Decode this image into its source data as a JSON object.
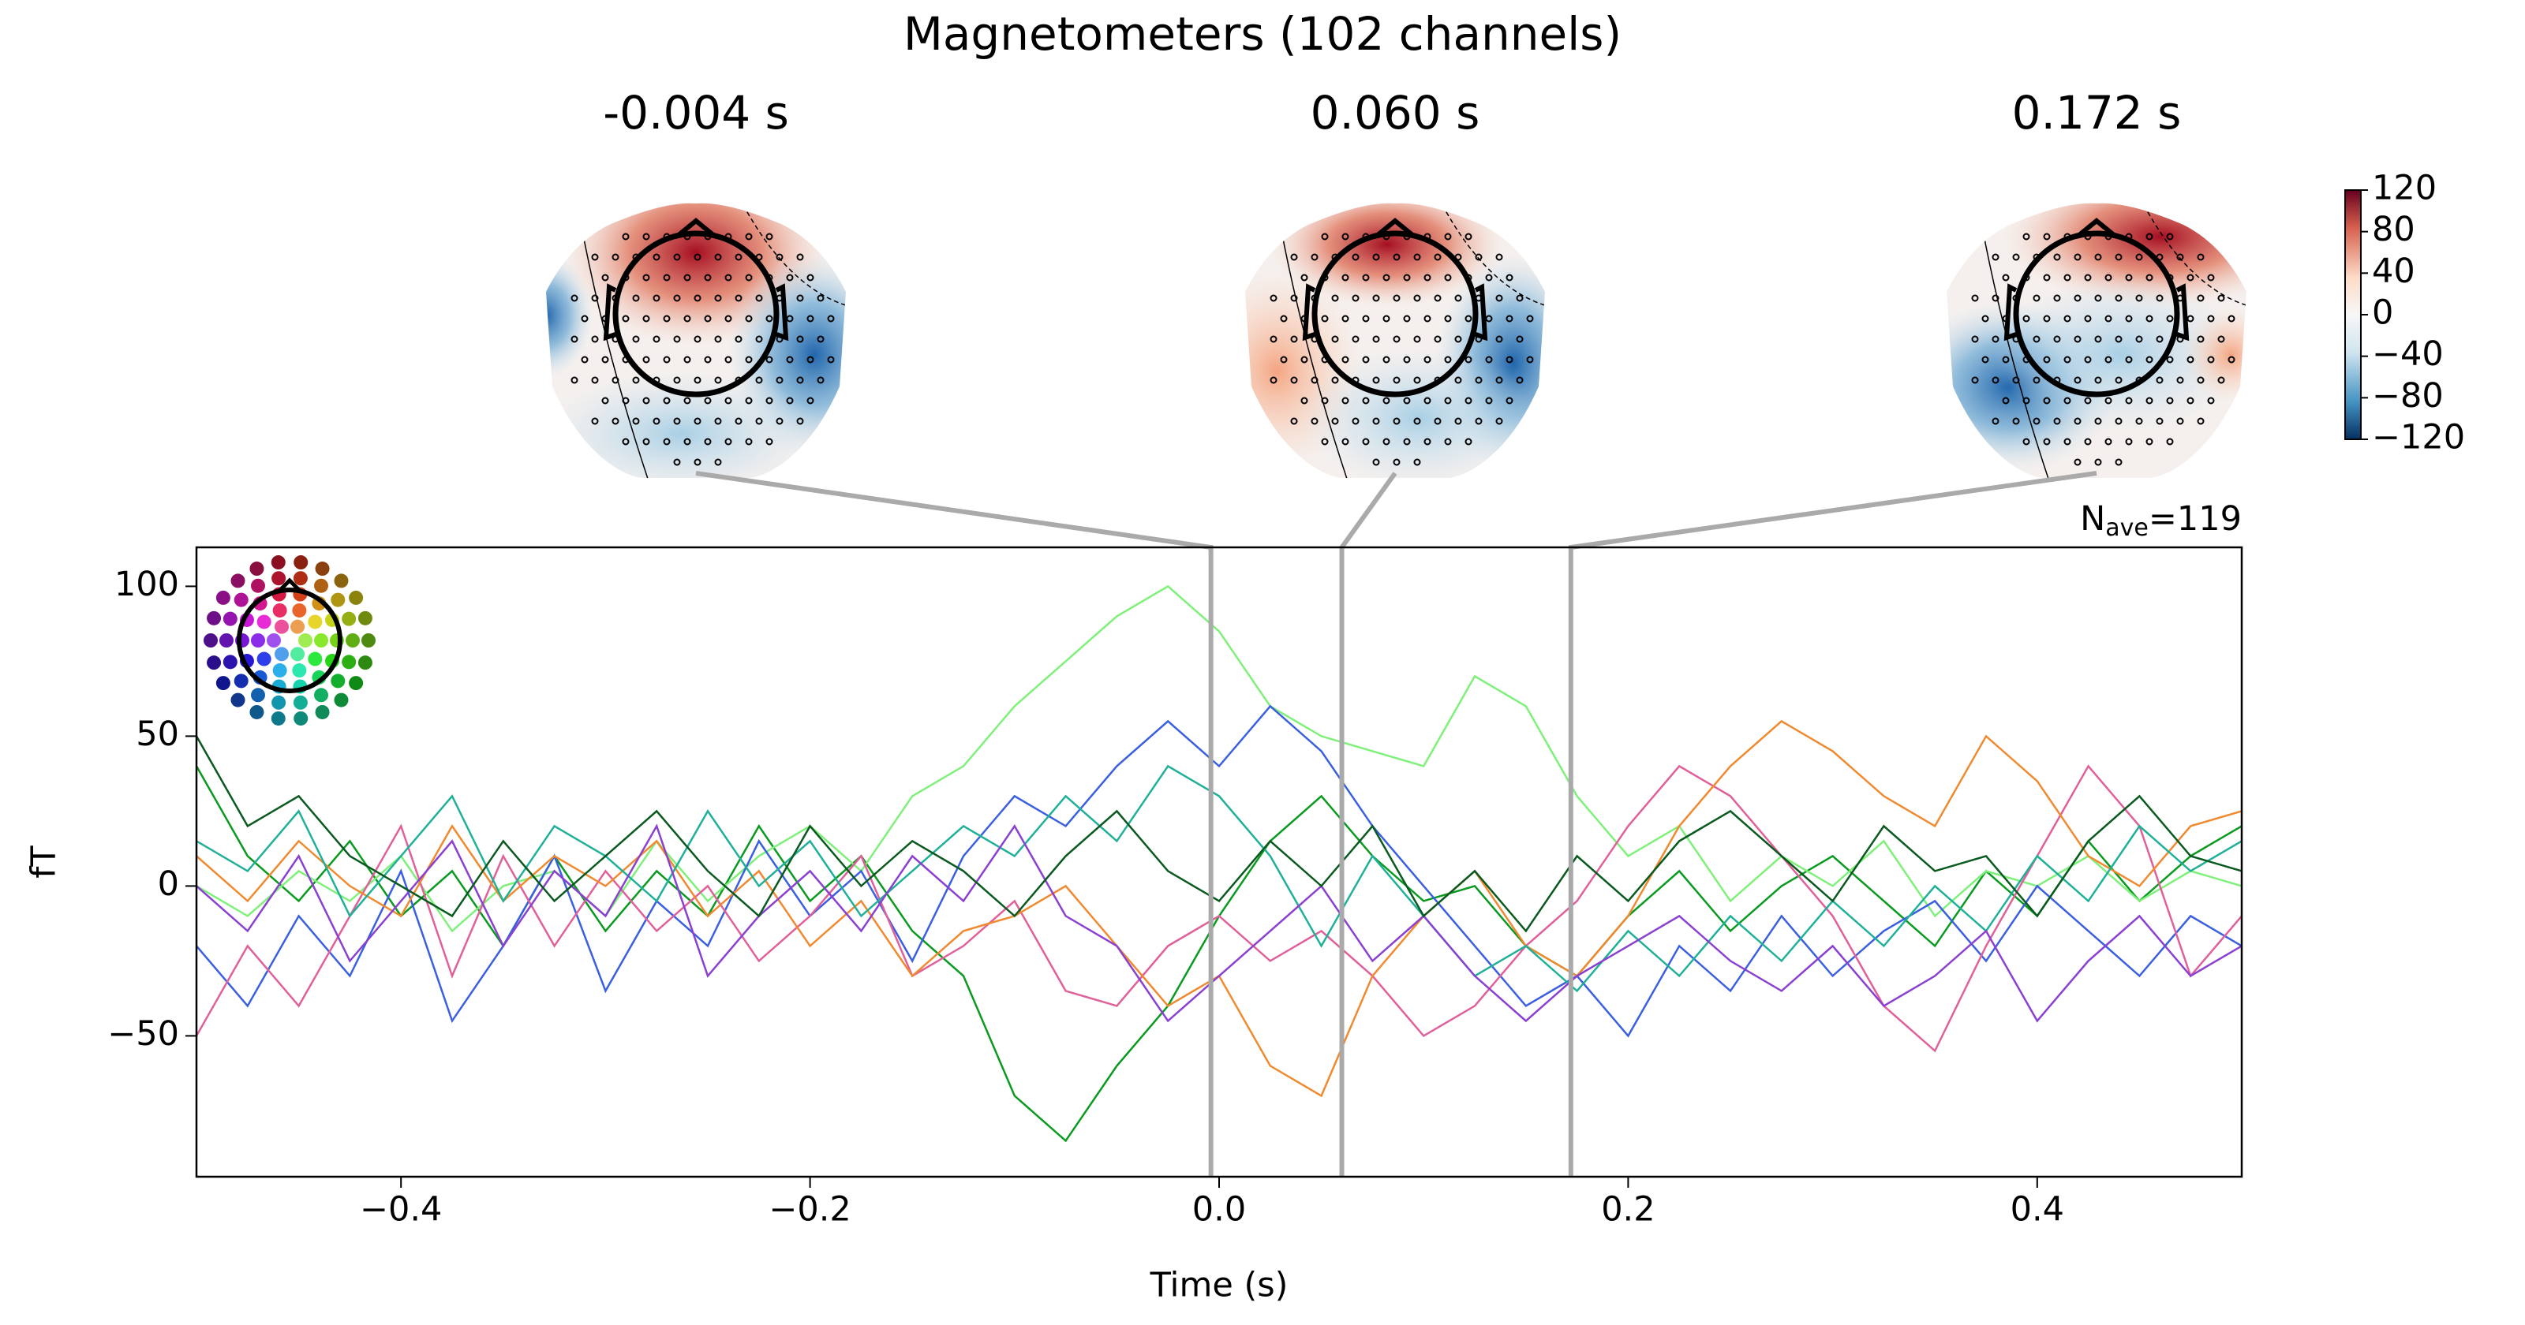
{
  "chart_data": {
    "type": "line",
    "title": "Magnetometers (102 channels)",
    "xlabel": "Time (s)",
    "ylabel": "fT",
    "nave": {
      "symbol": "N",
      "subscript": "ave",
      "text": "=119"
    },
    "topomap_times": [
      {
        "value": -0.004,
        "label": "-0.004 s"
      },
      {
        "value": 0.06,
        "label": "0.060 s"
      },
      {
        "value": 0.172,
        "label": "0.172 s"
      }
    ],
    "clim": [
      -120,
      120
    ],
    "cticks": [
      120,
      80,
      40,
      0,
      {
        "value": -40,
        "label": "−40"
      },
      {
        "value": -80,
        "label": "−80"
      },
      {
        "value": -120,
        "label": "−120"
      }
    ],
    "xlim": [
      -0.5,
      0.5
    ],
    "ylim": [
      -97,
      113
    ],
    "xticks": [
      {
        "value": -0.4,
        "label": "−0.4"
      },
      {
        "value": -0.2,
        "label": "−0.2"
      },
      {
        "value": 0,
        "label": "0.0"
      },
      {
        "value": 0.2,
        "label": "0.2"
      },
      {
        "value": 0.4,
        "label": "0.4"
      }
    ],
    "yticks": [
      100,
      50,
      0,
      {
        "value": -50,
        "label": "−50"
      }
    ],
    "x": [
      -0.5,
      -0.475,
      -0.45,
      -0.425,
      -0.4,
      -0.375,
      -0.35,
      -0.325,
      -0.3,
      -0.275,
      -0.25,
      -0.225,
      -0.2,
      -0.175,
      -0.15,
      -0.125,
      -0.1,
      -0.075,
      -0.05,
      -0.025,
      0,
      0.025,
      0.05,
      0.075,
      0.1,
      0.125,
      0.15,
      0.175,
      0.2,
      0.225,
      0.25,
      0.275,
      0.3,
      0.325,
      0.35,
      0.375,
      0.4,
      0.425,
      0.45,
      0.475,
      0.5
    ],
    "series": [
      {
        "color": "#0a9a20",
        "values": [
          40,
          10,
          -5,
          15,
          -10,
          5,
          -20,
          10,
          -15,
          5,
          -10,
          20,
          -5,
          10,
          -15,
          -30,
          -70,
          -85,
          -60,
          -40,
          -10,
          15,
          30,
          10,
          -5,
          0,
          -20,
          -30,
          -10,
          5,
          -15,
          0,
          10,
          -5,
          -20,
          5,
          -10,
          15,
          -5,
          10,
          20
        ]
      },
      {
        "color": "#7ff07a",
        "values": [
          0,
          -10,
          5,
          -5,
          10,
          -15,
          0,
          5,
          -10,
          15,
          -5,
          10,
          20,
          5,
          30,
          40,
          60,
          75,
          90,
          100,
          85,
          60,
          50,
          45,
          40,
          70,
          60,
          30,
          10,
          20,
          -5,
          10,
          0,
          15,
          -10,
          5,
          0,
          10,
          -5,
          5,
          0
        ]
      },
      {
        "color": "#3a5fe0",
        "values": [
          -20,
          -40,
          -10,
          -30,
          5,
          -45,
          -20,
          10,
          -35,
          -5,
          -20,
          15,
          -10,
          5,
          -25,
          10,
          30,
          20,
          40,
          55,
          40,
          60,
          45,
          20,
          0,
          -20,
          -40,
          -30,
          -50,
          -20,
          -35,
          -10,
          -30,
          -15,
          -5,
          -25,
          0,
          -15,
          -30,
          -10,
          -20
        ]
      },
      {
        "color": "#e0609a",
        "values": [
          -50,
          -20,
          -40,
          -10,
          20,
          -30,
          10,
          -20,
          5,
          -15,
          0,
          -25,
          -10,
          10,
          -30,
          -20,
          -5,
          -35,
          -40,
          -20,
          -10,
          -25,
          -15,
          -30,
          -50,
          -40,
          -20,
          -5,
          20,
          40,
          30,
          10,
          -10,
          -40,
          -55,
          -20,
          10,
          40,
          20,
          -30,
          -10
        ]
      },
      {
        "color": "#f08a30",
        "values": [
          10,
          -5,
          15,
          0,
          -10,
          20,
          -5,
          10,
          0,
          15,
          -10,
          5,
          -20,
          -5,
          -30,
          -15,
          -10,
          0,
          -20,
          -40,
          -30,
          -60,
          -70,
          -30,
          -10,
          5,
          -20,
          -30,
          -10,
          20,
          40,
          55,
          45,
          30,
          20,
          50,
          35,
          10,
          0,
          20,
          25
        ]
      },
      {
        "color": "#20b098",
        "values": [
          15,
          5,
          25,
          -10,
          10,
          30,
          -5,
          20,
          10,
          -5,
          25,
          0,
          15,
          -10,
          5,
          20,
          10,
          30,
          15,
          40,
          30,
          10,
          -20,
          10,
          -10,
          -30,
          -20,
          -35,
          -15,
          -30,
          -10,
          -25,
          -5,
          -20,
          0,
          -15,
          10,
          -5,
          20,
          5,
          15
        ]
      },
      {
        "color": "#8a40d0",
        "values": [
          0,
          -15,
          10,
          -25,
          -5,
          15,
          -20,
          5,
          -10,
          20,
          -30,
          -10,
          5,
          -15,
          10,
          -5,
          20,
          -10,
          -20,
          -45,
          -30,
          -15,
          0,
          -25,
          -10,
          -30,
          -45,
          -30,
          -20,
          -10,
          -25,
          -35,
          -20,
          -40,
          -30,
          -15,
          -45,
          -25,
          -10,
          -30,
          -20
        ]
      },
      {
        "color": "#0a5a20",
        "values": [
          50,
          20,
          30,
          10,
          0,
          -10,
          15,
          -5,
          10,
          25,
          5,
          -10,
          20,
          0,
          15,
          5,
          -10,
          10,
          25,
          5,
          -5,
          15,
          0,
          20,
          -10,
          5,
          -15,
          10,
          -5,
          15,
          25,
          10,
          -5,
          20,
          5,
          10,
          -10,
          15,
          30,
          10,
          5
        ]
      }
    ]
  }
}
